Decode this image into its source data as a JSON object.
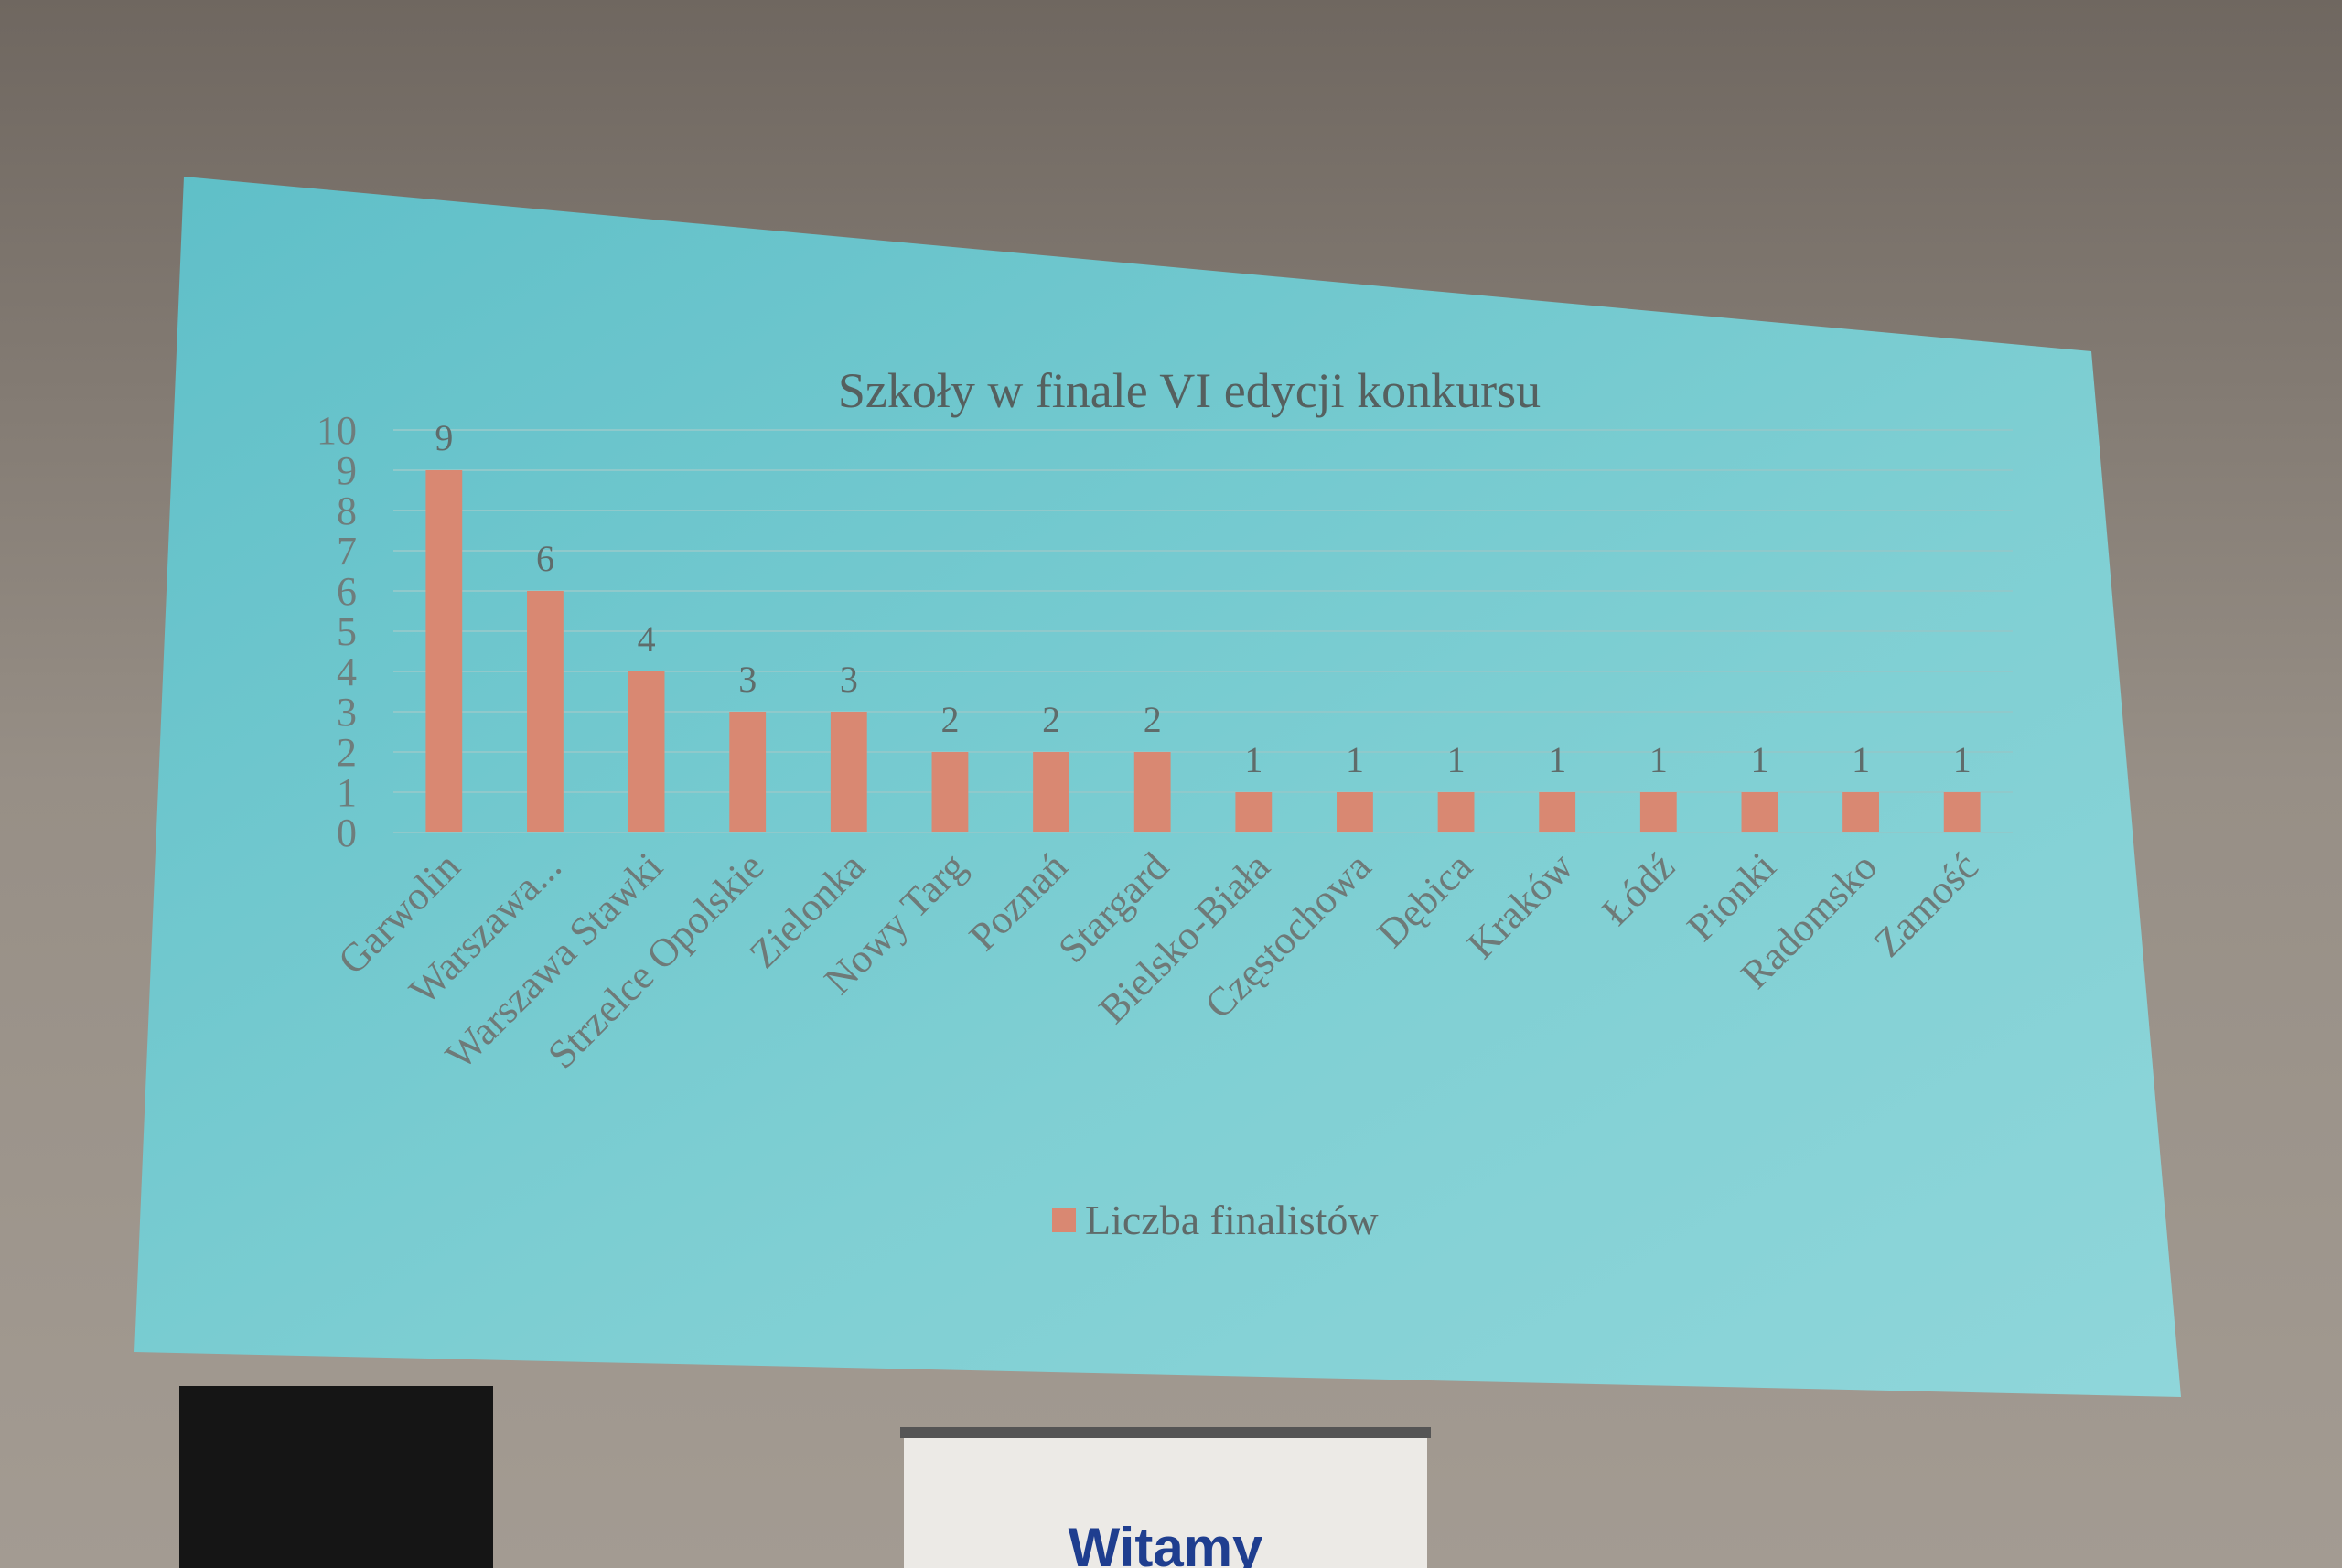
{
  "chart_data": {
    "type": "bar",
    "title": "Szkoły w finale VI edycji konkursu",
    "categories": [
      "Garwolin",
      "Warszawa...",
      "Warszawa Stawki",
      "Strzelce Opolskie",
      "Zielonka",
      "Nowy Targ",
      "Poznań",
      "Stargard",
      "Bielsko-Biała",
      "Częstochowa",
      "Dębica",
      "Kraków",
      "Łódź",
      "Pionki",
      "Radomsko",
      "Zamość"
    ],
    "series": [
      {
        "name": "Liczba finalistów",
        "color": "#d98872",
        "values": [
          9,
          6,
          4,
          3,
          3,
          2,
          2,
          2,
          1,
          1,
          1,
          1,
          1,
          1,
          1,
          1
        ]
      }
    ],
    "ylim": [
      0,
      10
    ],
    "yticks": [
      0,
      1,
      2,
      3,
      4,
      5,
      6,
      7,
      8,
      9,
      10
    ],
    "grid": true,
    "legend": "bottom"
  },
  "sign_text": "Witamy"
}
